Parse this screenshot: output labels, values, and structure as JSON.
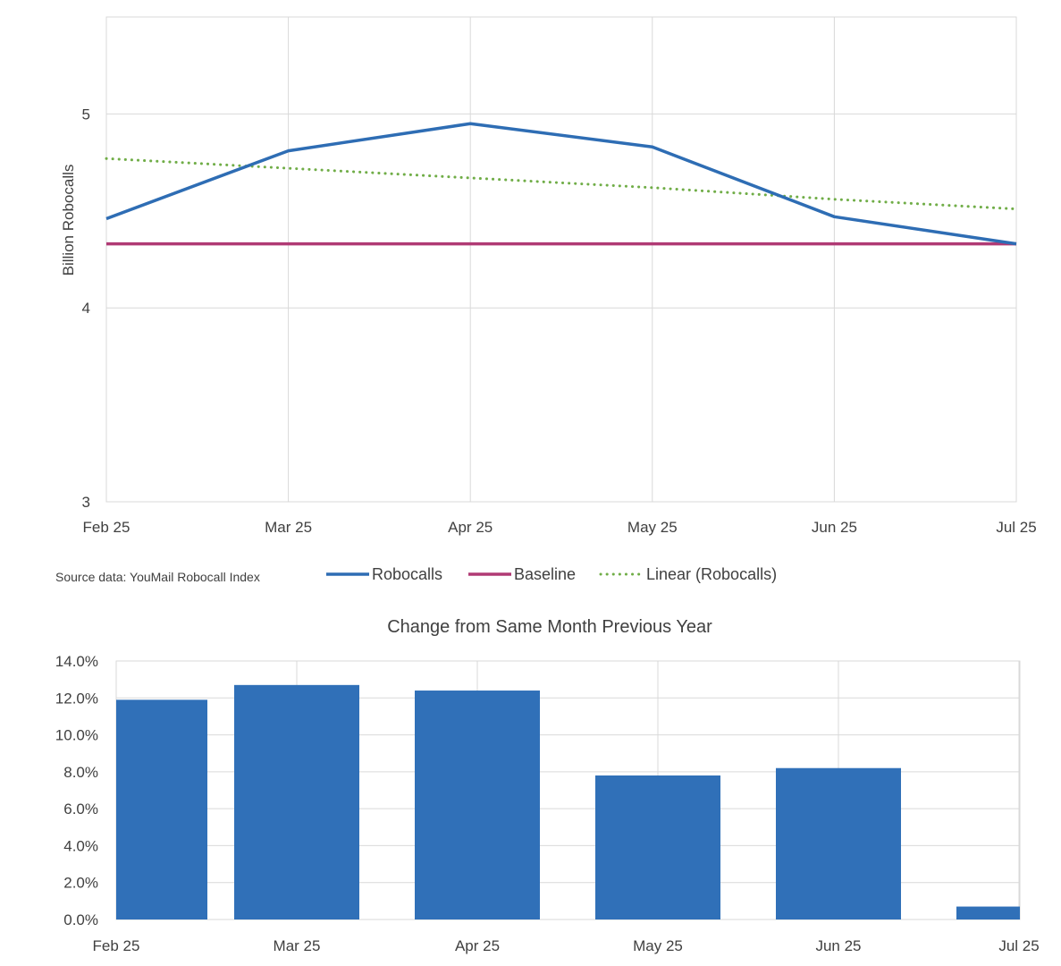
{
  "chart_data": [
    {
      "type": "line",
      "title": "",
      "xlabel": "",
      "ylabel": "Billion Robocalls",
      "categories": [
        "Feb 25",
        "Mar 25",
        "Apr 25",
        "May 25",
        "Jun 25",
        "Jul 25"
      ],
      "ylim": [
        3,
        5.5
      ],
      "yticks": [
        "3",
        "4",
        "5"
      ],
      "grid": true,
      "series": [
        {
          "name": "Robocalls",
          "values": [
            4.46,
            4.81,
            4.95,
            4.83,
            4.47,
            4.33
          ],
          "color": "#2E6DB4",
          "style": "solid"
        },
        {
          "name": "Baseline",
          "values": [
            4.33,
            4.33,
            4.33,
            4.33,
            4.33,
            4.33
          ],
          "color": "#B03A74",
          "style": "solid"
        },
        {
          "name": "Linear (Robocalls)",
          "values": [
            4.77,
            4.72,
            4.67,
            4.62,
            4.56,
            4.51
          ],
          "color": "#70AD47",
          "style": "dotted"
        }
      ],
      "source_note": "Source data: YouMail Robocall Index",
      "legend_position": "bottom"
    },
    {
      "type": "bar",
      "title": "Change from Same Month Previous Year",
      "xlabel": "",
      "ylabel": "",
      "categories": [
        "Feb 25",
        "Mar 25",
        "Apr 25",
        "May 25",
        "Jun 25",
        "Jul 25"
      ],
      "values": [
        11.9,
        12.7,
        12.4,
        7.8,
        8.2,
        0.7
      ],
      "ylim": [
        0,
        14
      ],
      "yticks": [
        "0.0%",
        "2.0%",
        "4.0%",
        "6.0%",
        "8.0%",
        "10.0%",
        "12.0%",
        "14.0%"
      ],
      "grid": true,
      "color": "#3070B8"
    }
  ]
}
